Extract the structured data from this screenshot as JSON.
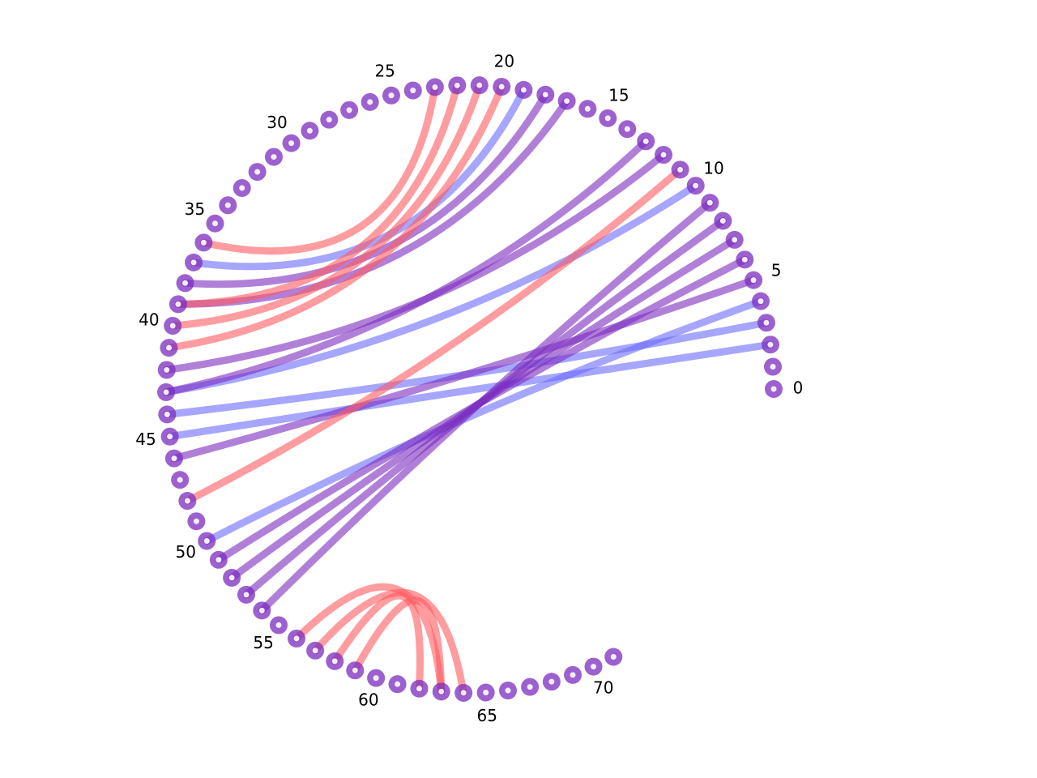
{
  "diagram": {
    "type": "arc-diagram",
    "node_count": 72,
    "tick_labels": [
      "0",
      "5",
      "10",
      "15",
      "20",
      "25",
      "30",
      "35",
      "40",
      "45",
      "50",
      "55",
      "60",
      "65",
      "70"
    ],
    "colors": {
      "node": "#7b2cbf",
      "red": "#ff5a5f",
      "blue": "#6b6bff",
      "purple": "#7b2cbf"
    },
    "links": [
      {
        "from": 2,
        "to": 45,
        "color": "blue"
      },
      {
        "from": 3,
        "to": 44,
        "color": "blue"
      },
      {
        "from": 4,
        "to": 50,
        "color": "blue"
      },
      {
        "from": 5,
        "to": 46,
        "color": "purple"
      },
      {
        "from": 6,
        "to": 51,
        "color": "purple"
      },
      {
        "from": 7,
        "to": 52,
        "color": "purple"
      },
      {
        "from": 8,
        "to": 53,
        "color": "purple"
      },
      {
        "from": 9,
        "to": 54,
        "color": "purple"
      },
      {
        "from": 10,
        "to": 43,
        "color": "blue"
      },
      {
        "from": 11,
        "to": 48,
        "color": "red"
      },
      {
        "from": 12,
        "to": 42,
        "color": "purple"
      },
      {
        "from": 13,
        "to": 43,
        "color": "purple"
      },
      {
        "from": 17,
        "to": 39,
        "color": "purple"
      },
      {
        "from": 18,
        "to": 38,
        "color": "purple"
      },
      {
        "from": 19,
        "to": 37,
        "color": "blue"
      },
      {
        "from": 20,
        "to": 41,
        "color": "red"
      },
      {
        "from": 21,
        "to": 40,
        "color": "red"
      },
      {
        "from": 22,
        "to": 39,
        "color": "red"
      },
      {
        "from": 23,
        "to": 36,
        "color": "red"
      },
      {
        "from": 56,
        "to": 63,
        "color": "red"
      },
      {
        "from": 57,
        "to": 64,
        "color": "red"
      },
      {
        "from": 58,
        "to": 62,
        "color": "red"
      },
      {
        "from": 59,
        "to": 63,
        "color": "red"
      }
    ]
  }
}
